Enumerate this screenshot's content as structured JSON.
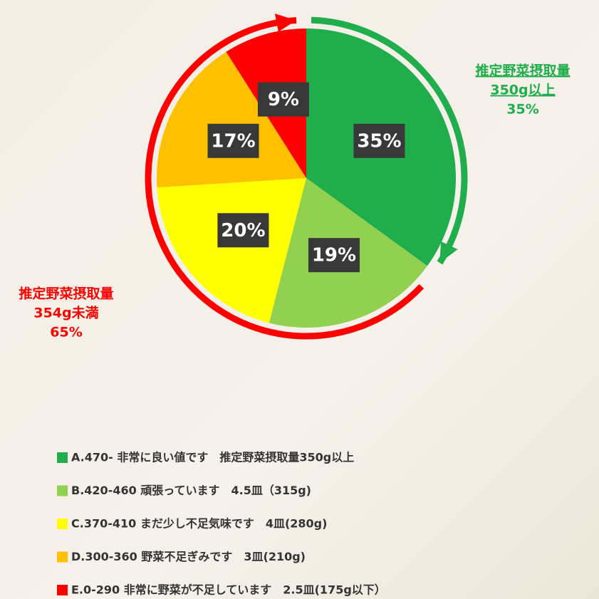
{
  "chart_data": {
    "type": "pie",
    "categories": [
      "A.470- 非常に良い値です　推定野菜摂取量350g以上",
      "B.420-460 頑張っています　4.5皿（315g)",
      "C.370-410 まだ少し不足気味です　4皿(280g)",
      "D.300-360 野菜不足ぎみです　3皿(210g)",
      "E.0-290 非常に野菜が不足しています　2.5皿(175g以下）"
    ],
    "values": [
      35,
      19,
      20,
      17,
      9
    ],
    "value_labels": [
      "35%",
      "19%",
      "20%",
      "17%",
      "9%"
    ],
    "colors": [
      "#1fae4b",
      "#92d050",
      "#ffff00",
      "#ffc000",
      "#ff0000"
    ],
    "annotations": [
      {
        "lines": [
          "推定野菜摂取量",
          "350g以上",
          "35%"
        ],
        "color": "#1fae4b"
      },
      {
        "lines": [
          "推定野菜摂取量",
          "354g未満",
          "65%"
        ],
        "color": "#ff0000"
      }
    ]
  }
}
